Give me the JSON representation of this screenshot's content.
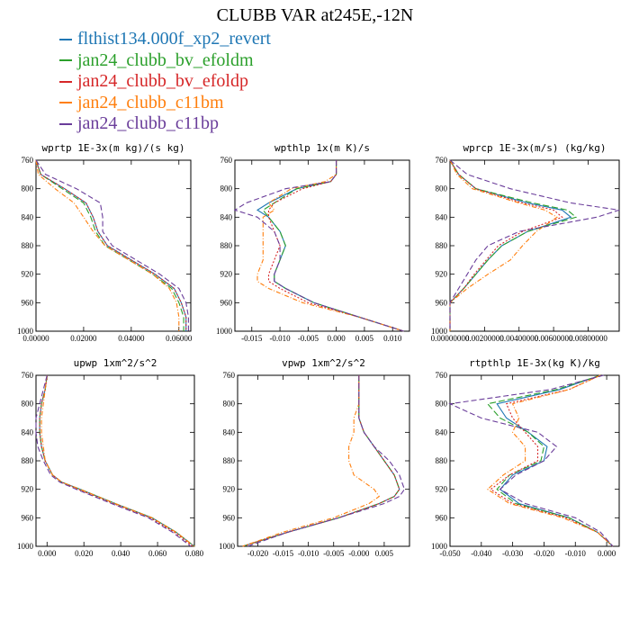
{
  "title": "CLUBB VAR at245E,-12N",
  "colors": {
    "s0": "#1f77b4",
    "s1": "#2ca02c",
    "s2": "#d62728",
    "s3": "#ff7f0e",
    "s4": "#6a3d9a"
  },
  "legend": [
    {
      "name": "flthist134.000f_xp2_revert",
      "color": "#1f77b4"
    },
    {
      "name": "jan24_clubb_bv_efoldm",
      "color": "#2ca02c"
    },
    {
      "name": "jan24_clubb_bv_efoldp",
      "color": "#d62728"
    },
    {
      "name": "jan24_clubb_c11bm",
      "color": "#ff7f0e"
    },
    {
      "name": "jan24_clubb_c11bp",
      "color": "#6a3d9a"
    }
  ],
  "chart_data": [
    {
      "type": "line",
      "title": "wprtp  1E-3x(m kg)/(s kg)",
      "xlim": [
        0,
        0.065
      ],
      "ylim": [
        760,
        1000
      ],
      "y_inverted": true,
      "xticks": [
        "0.00000",
        "0.02000",
        "0.04000",
        "0.06000"
      ],
      "xtick_values": [
        0,
        0.02,
        0.04,
        0.06
      ],
      "yticks": [
        760,
        800,
        840,
        880,
        920,
        960,
        1000
      ],
      "levels": [
        760,
        780,
        800,
        820,
        840,
        860,
        880,
        900,
        920,
        940,
        960,
        980,
        1000
      ],
      "series": [
        {
          "values": [
            0.0,
            0.002,
            0.012,
            0.021,
            0.024,
            0.026,
            0.03,
            0.04,
            0.05,
            0.058,
            0.061,
            0.063,
            0.063
          ]
        },
        {
          "values": [
            0.0,
            0.002,
            0.011,
            0.02,
            0.023,
            0.025,
            0.029,
            0.039,
            0.049,
            0.057,
            0.06,
            0.062,
            0.062
          ]
        },
        {
          "values": [
            0.0,
            0.002,
            0.012,
            0.021,
            0.024,
            0.026,
            0.03,
            0.04,
            0.05,
            0.058,
            0.061,
            0.063,
            0.063
          ]
        },
        {
          "values": [
            0.0,
            0.001,
            0.008,
            0.016,
            0.02,
            0.024,
            0.029,
            0.039,
            0.049,
            0.056,
            0.059,
            0.06,
            0.06
          ]
        },
        {
          "values": [
            0.0,
            0.004,
            0.017,
            0.027,
            0.028,
            0.028,
            0.032,
            0.042,
            0.052,
            0.06,
            0.063,
            0.064,
            0.064
          ]
        }
      ]
    },
    {
      "type": "line",
      "title": "wpthlp  1x(m K)/s",
      "xlim": [
        -0.018,
        0.013
      ],
      "ylim": [
        760,
        1000
      ],
      "y_inverted": true,
      "xticks": [
        "-0.015",
        "-0.010",
        "-0.005",
        "0.000",
        "0.005",
        "0.010"
      ],
      "xtick_values": [
        -0.015,
        -0.01,
        -0.005,
        0.0,
        0.005,
        0.01
      ],
      "yticks": [
        760,
        800,
        840,
        880,
        920,
        960,
        1000
      ],
      "levels": [
        760,
        780,
        790,
        800,
        820,
        830,
        840,
        860,
        880,
        900,
        920,
        930,
        940,
        960,
        980,
        1000
      ],
      "series": [
        {
          "values": [
            0.0,
            0.0,
            -0.001,
            -0.007,
            -0.012,
            -0.014,
            -0.012,
            -0.01,
            -0.009,
            -0.01,
            -0.011,
            -0.011,
            -0.009,
            -0.004,
            0.004,
            0.012
          ]
        },
        {
          "values": [
            0.0,
            0.0,
            -0.001,
            -0.007,
            -0.011,
            -0.013,
            -0.012,
            -0.01,
            -0.009,
            -0.01,
            -0.011,
            -0.011,
            -0.009,
            -0.004,
            0.004,
            0.012
          ]
        },
        {
          "values": [
            0.0,
            0.0,
            -0.001,
            -0.006,
            -0.011,
            -0.012,
            -0.012,
            -0.011,
            -0.01,
            -0.011,
            -0.012,
            -0.012,
            -0.01,
            -0.005,
            0.004,
            0.012
          ]
        },
        {
          "values": [
            0.0,
            0.0,
            -0.002,
            -0.008,
            -0.012,
            -0.011,
            -0.013,
            -0.013,
            -0.013,
            -0.013,
            -0.014,
            -0.014,
            -0.012,
            -0.006,
            0.004,
            0.012
          ]
        },
        {
          "values": [
            0.0,
            0.0,
            -0.001,
            -0.009,
            -0.016,
            -0.018,
            -0.014,
            -0.011,
            -0.01,
            -0.01,
            -0.011,
            -0.011,
            -0.009,
            -0.004,
            0.004,
            0.012
          ]
        }
      ]
    },
    {
      "type": "line",
      "title": "wprcp  1E-3x(m/s) (kg/kg)",
      "xlim": [
        0,
        0.0098
      ],
      "ylim": [
        760,
        1000
      ],
      "y_inverted": true,
      "xticks": [
        "0.00000000",
        "0.00200000",
        "0.00400000",
        "0.00600000",
        "0.00800000"
      ],
      "xtick_values": [
        0,
        0.002,
        0.004,
        0.006,
        0.008
      ],
      "yticks": [
        760,
        800,
        840,
        880,
        920,
        960,
        1000
      ],
      "levels": [
        760,
        780,
        800,
        820,
        830,
        840,
        860,
        880,
        900,
        920,
        940,
        960,
        980,
        1000
      ],
      "series": [
        {
          "values": [
            0.0,
            0.0005,
            0.0015,
            0.0045,
            0.0065,
            0.007,
            0.0045,
            0.003,
            0.0022,
            0.0015,
            0.0008,
            0.0,
            0.0,
            0.0
          ]
        },
        {
          "values": [
            0.0,
            0.0005,
            0.0015,
            0.0048,
            0.0068,
            0.0073,
            0.0045,
            0.003,
            0.0022,
            0.0015,
            0.0008,
            0.0,
            0.0,
            0.0
          ]
        },
        {
          "values": [
            0.0,
            0.0005,
            0.0015,
            0.0042,
            0.006,
            0.0065,
            0.0042,
            0.0028,
            0.0021,
            0.0014,
            0.0008,
            0.0,
            0.0,
            0.0
          ]
        },
        {
          "values": [
            0.0,
            0.0004,
            0.0013,
            0.004,
            0.0055,
            0.0062,
            0.005,
            0.0042,
            0.0035,
            0.0022,
            0.001,
            0.0,
            0.0,
            0.0
          ]
        },
        {
          "values": [
            0.0,
            0.001,
            0.0035,
            0.007,
            0.0098,
            0.0085,
            0.004,
            0.0022,
            0.0015,
            0.001,
            0.0005,
            0.0,
            0.0,
            0.0
          ]
        }
      ]
    },
    {
      "type": "line",
      "title": "upwp  1xm^2/s^2",
      "xlim": [
        -0.006,
        0.08
      ],
      "ylim": [
        760,
        1000
      ],
      "y_inverted": true,
      "xticks": [
        "0.000",
        "0.020",
        "0.040",
        "0.060",
        "0.080"
      ],
      "xtick_values": [
        0,
        0.02,
        0.04,
        0.06,
        0.08
      ],
      "yticks": [
        760,
        800,
        840,
        880,
        920,
        960,
        1000
      ],
      "levels": [
        760,
        780,
        800,
        820,
        840,
        860,
        880,
        900,
        910,
        920,
        940,
        960,
        980,
        1000
      ],
      "series": [
        {
          "values": [
            0.0,
            -0.001,
            -0.003,
            -0.004,
            -0.004,
            -0.003,
            -0.001,
            0.003,
            0.008,
            0.018,
            0.037,
            0.057,
            0.07,
            0.08
          ]
        },
        {
          "values": [
            0.0,
            -0.001,
            -0.003,
            -0.004,
            -0.004,
            -0.003,
            -0.001,
            0.003,
            0.008,
            0.018,
            0.037,
            0.057,
            0.07,
            0.08
          ]
        },
        {
          "values": [
            0.0,
            -0.001,
            -0.003,
            -0.004,
            -0.004,
            -0.003,
            -0.001,
            0.003,
            0.008,
            0.017,
            0.036,
            0.056,
            0.069,
            0.079
          ]
        },
        {
          "values": [
            0.0,
            -0.001,
            -0.002,
            -0.003,
            -0.003,
            -0.002,
            -0.001,
            0.003,
            0.008,
            0.018,
            0.037,
            0.057,
            0.07,
            0.08
          ]
        },
        {
          "values": [
            0.0,
            -0.002,
            -0.004,
            -0.006,
            -0.006,
            -0.005,
            -0.002,
            0.002,
            0.007,
            0.016,
            0.035,
            0.055,
            0.068,
            0.078
          ]
        }
      ]
    },
    {
      "type": "line",
      "title": "vpwp  1xm^2/s^2",
      "xlim": [
        -0.024,
        0.01
      ],
      "ylim": [
        760,
        1000
      ],
      "y_inverted": true,
      "xticks": [
        "-0.020",
        "-0.015",
        "-0.010",
        "-0.005",
        "-0.000",
        "0.005"
      ],
      "xtick_values": [
        -0.02,
        -0.015,
        -0.01,
        -0.005,
        0.0,
        0.005
      ],
      "yticks": [
        760,
        800,
        840,
        880,
        920,
        960,
        1000
      ],
      "levels": [
        760,
        800,
        820,
        840,
        860,
        880,
        900,
        920,
        930,
        940,
        960,
        980,
        1000
      ],
      "series": [
        {
          "values": [
            0.0,
            0.0,
            0.0,
            0.001,
            0.003,
            0.005,
            0.007,
            0.008,
            0.007,
            0.004,
            -0.004,
            -0.014,
            -0.023
          ]
        },
        {
          "values": [
            0.0,
            0.0,
            0.0,
            0.001,
            0.003,
            0.005,
            0.007,
            0.008,
            0.007,
            0.004,
            -0.004,
            -0.014,
            -0.023
          ]
        },
        {
          "values": [
            0.0,
            0.0,
            0.0,
            0.001,
            0.003,
            0.005,
            0.007,
            0.008,
            0.007,
            0.004,
            -0.004,
            -0.014,
            -0.023
          ]
        },
        {
          "values": [
            0.0,
            0.0,
            -0.001,
            -0.001,
            -0.002,
            -0.002,
            -0.001,
            0.003,
            0.004,
            0.002,
            -0.005,
            -0.015,
            -0.023
          ]
        },
        {
          "values": [
            0.0,
            0.0,
            0.0,
            0.001,
            0.003,
            0.006,
            0.008,
            0.009,
            0.008,
            0.005,
            -0.004,
            -0.014,
            -0.022
          ]
        }
      ]
    },
    {
      "type": "line",
      "title": "rtpthlp  1E-3x(kg K)/kg",
      "xlim": [
        -0.05,
        0.004
      ],
      "ylim": [
        760,
        1000
      ],
      "y_inverted": true,
      "xticks": [
        "-0.050",
        "-0.040",
        "-0.030",
        "-0.020",
        "-0.010",
        "0.000"
      ],
      "xtick_values": [
        -0.05,
        -0.04,
        -0.03,
        -0.02,
        -0.01,
        0.0
      ],
      "yticks": [
        760,
        800,
        840,
        880,
        920,
        960,
        1000
      ],
      "levels": [
        760,
        780,
        800,
        820,
        840,
        860,
        880,
        900,
        920,
        940,
        960,
        980,
        1000
      ],
      "series": [
        {
          "values": [
            -0.002,
            -0.015,
            -0.035,
            -0.032,
            -0.025,
            -0.019,
            -0.02,
            -0.03,
            -0.034,
            -0.028,
            -0.012,
            -0.003,
            0.002
          ]
        },
        {
          "values": [
            -0.002,
            -0.016,
            -0.038,
            -0.034,
            -0.025,
            -0.02,
            -0.021,
            -0.031,
            -0.035,
            -0.029,
            -0.012,
            -0.003,
            0.002
          ]
        },
        {
          "values": [
            -0.002,
            -0.012,
            -0.032,
            -0.03,
            -0.026,
            -0.022,
            -0.022,
            -0.031,
            -0.037,
            -0.03,
            -0.013,
            -0.003,
            0.002
          ]
        },
        {
          "values": [
            -0.002,
            -0.012,
            -0.03,
            -0.028,
            -0.03,
            -0.026,
            -0.026,
            -0.033,
            -0.038,
            -0.031,
            -0.014,
            -0.003,
            0.002
          ]
        },
        {
          "values": [
            -0.001,
            -0.018,
            -0.05,
            -0.04,
            -0.022,
            -0.016,
            -0.02,
            -0.029,
            -0.034,
            -0.026,
            -0.01,
            -0.002,
            0.002
          ]
        }
      ]
    }
  ]
}
